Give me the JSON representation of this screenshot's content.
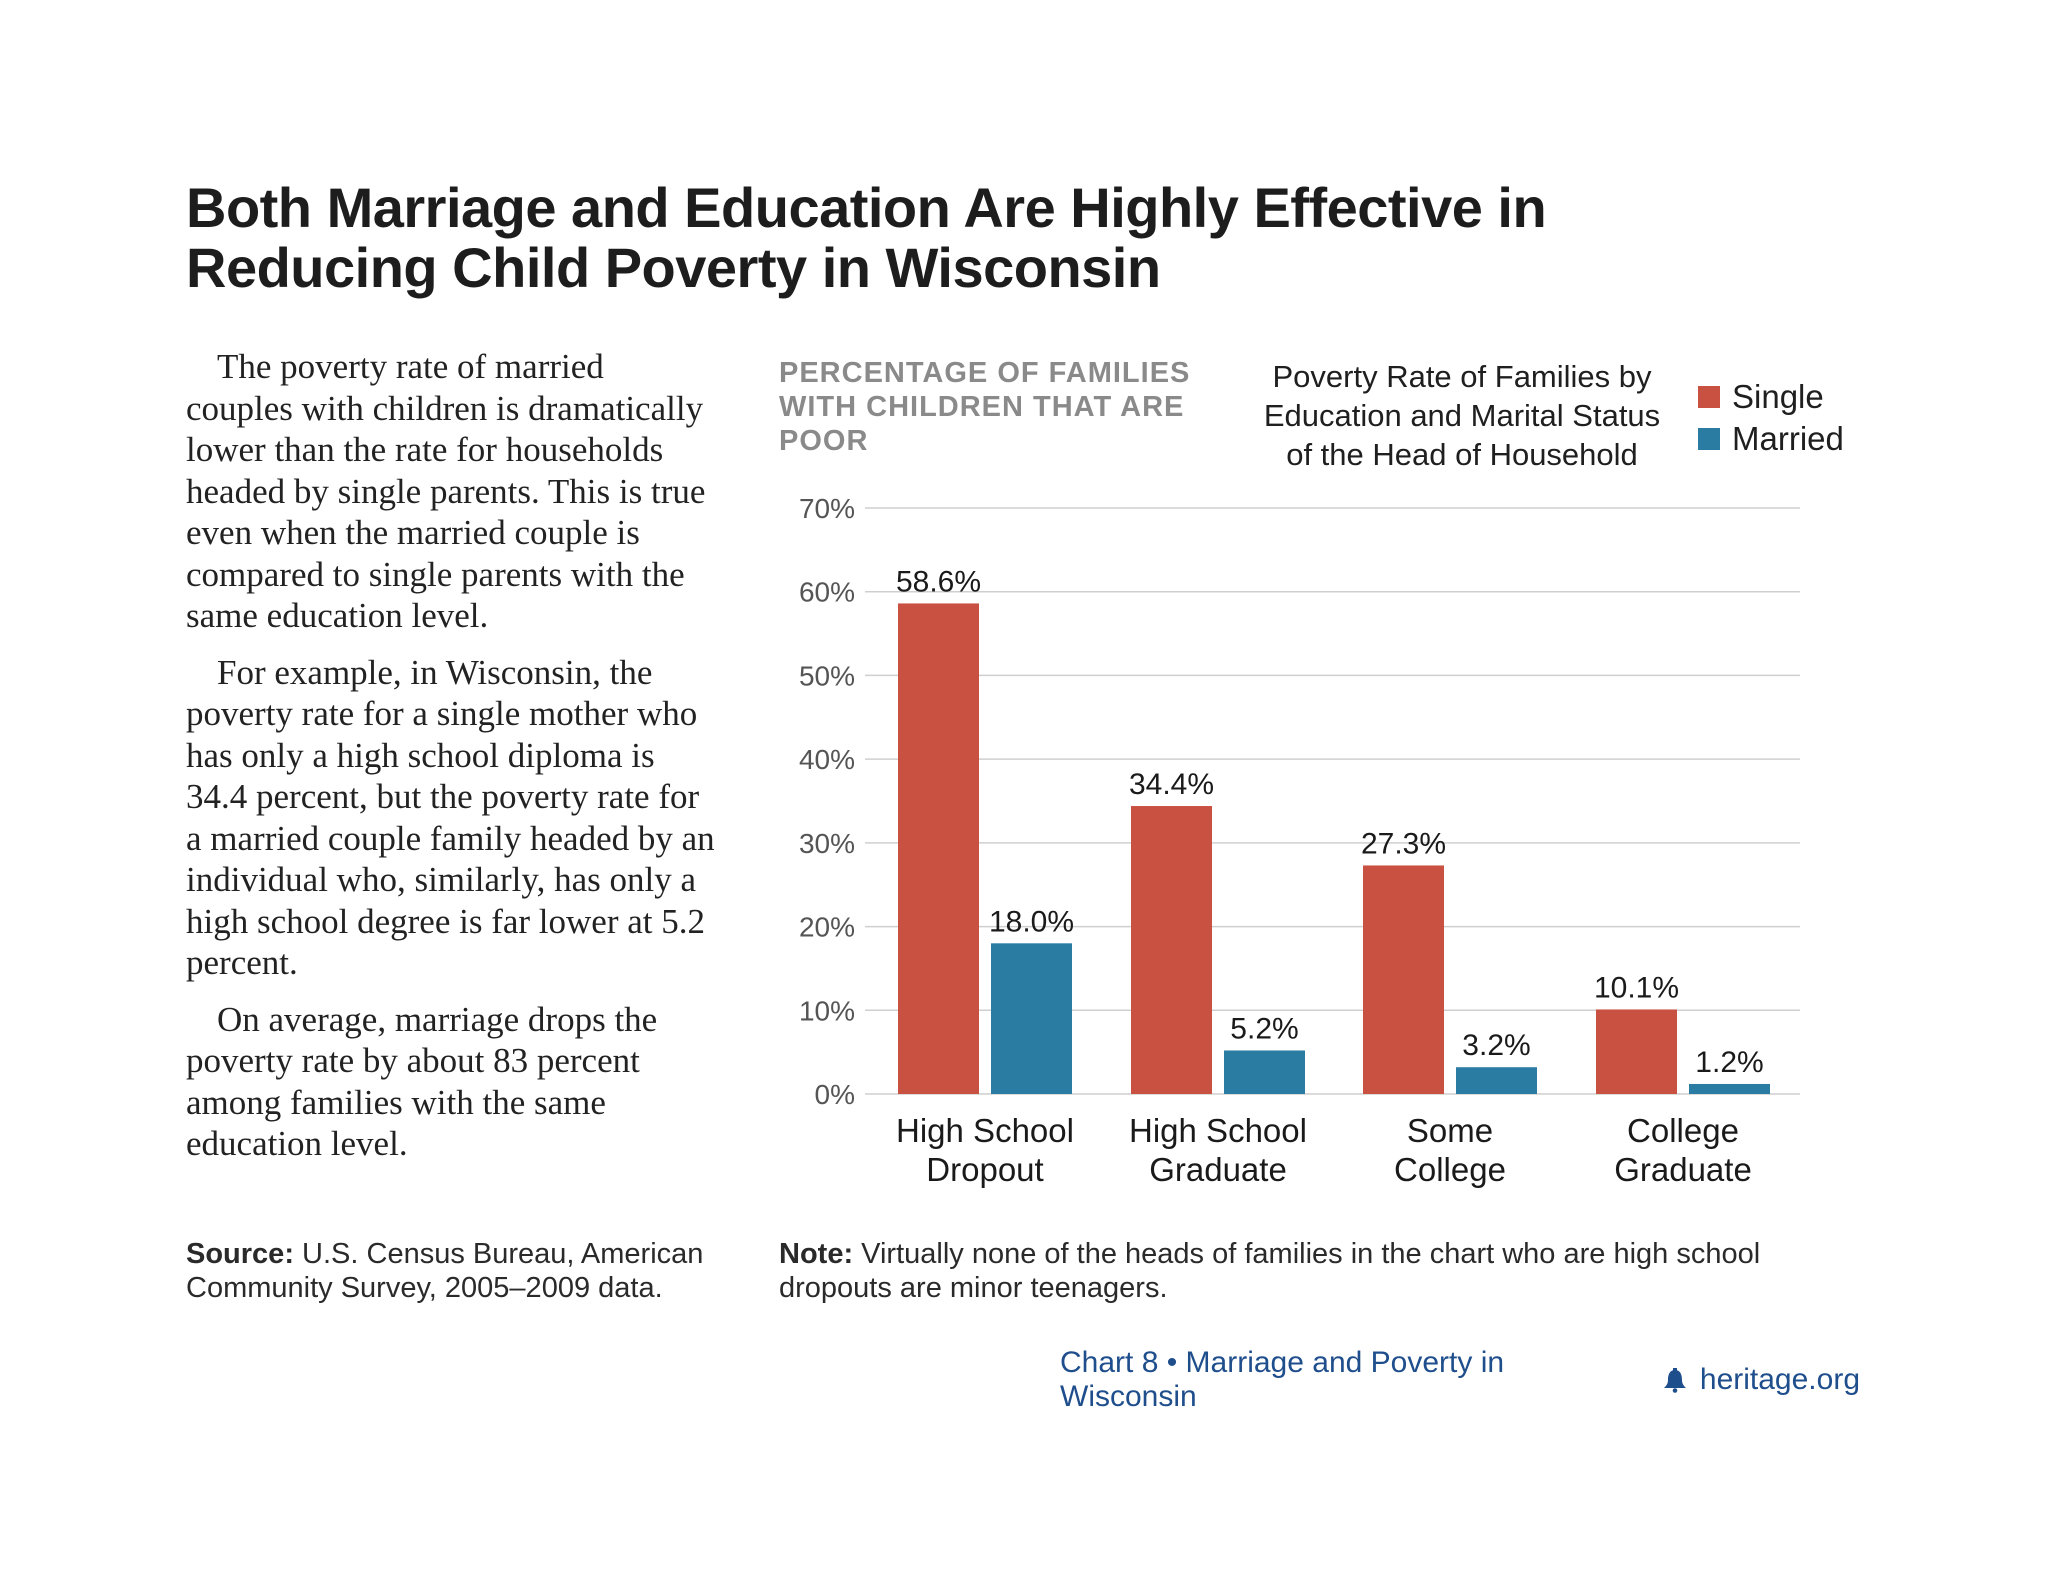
{
  "headline": "Both Marriage and Education Are Highly Effective in Reducing Child Poverty in Wisconsin",
  "body_paragraphs": [
    "The poverty rate of married couples with children is dramatically lower than the rate for households headed by single parents. This is true even when the married couple is compared to single parents with the same education level.",
    "For example, in Wisconsin, the poverty rate for a single mother who has only a high school diploma is 34.4 percent, but the poverty rate for a married couple family headed by an individual who, similarly, has only a high school degree is far lower at 5.2 percent.",
    "On average, marriage drops the poverty rate by about 83 percent among families with the same education level."
  ],
  "source": {
    "label": "Source:",
    "text": "U.S. Census Bureau, American Community Survey, 2005–2009 data."
  },
  "note": {
    "label": "Note:",
    "text": "Virtually none of the heads of families in the chart who are high school dropouts are minor teenagers."
  },
  "footer": {
    "chart_ref": "Chart 8 • Marriage and Poverty in Wisconsin",
    "site": "heritage.org",
    "brand_color": "#1f4e8c"
  },
  "chart_data": {
    "type": "bar",
    "title": "Poverty Rate of Families by Education and Marital Status of the Head of Household",
    "ylabel": "PERCENTAGE OF FAMILIES WITH CHILDREN THAT ARE POOR",
    "xlabel": "",
    "categories": [
      "High School Dropout",
      "High School Graduate",
      "Some College",
      "College Graduate"
    ],
    "series": [
      {
        "name": "Single",
        "values": [
          58.6,
          34.4,
          27.3,
          10.1
        ],
        "labels": [
          "58.6%",
          "34.4%",
          "27.3%",
          "10.1%"
        ],
        "color": "#c95141"
      },
      {
        "name": "Married",
        "values": [
          18.0,
          5.2,
          3.2,
          1.2
        ],
        "labels": [
          "18.0%",
          "5.2%",
          "3.2%",
          "1.2%"
        ],
        "color": "#2b7ca3"
      }
    ],
    "ylim": [
      0,
      70
    ],
    "yticks": [
      0,
      10,
      20,
      30,
      40,
      50,
      60,
      70
    ],
    "ytick_labels": [
      "0%",
      "10%",
      "20%",
      "30%",
      "40%",
      "50%",
      "60%",
      "70%"
    ],
    "grid": true,
    "legend_position": "top-right"
  }
}
